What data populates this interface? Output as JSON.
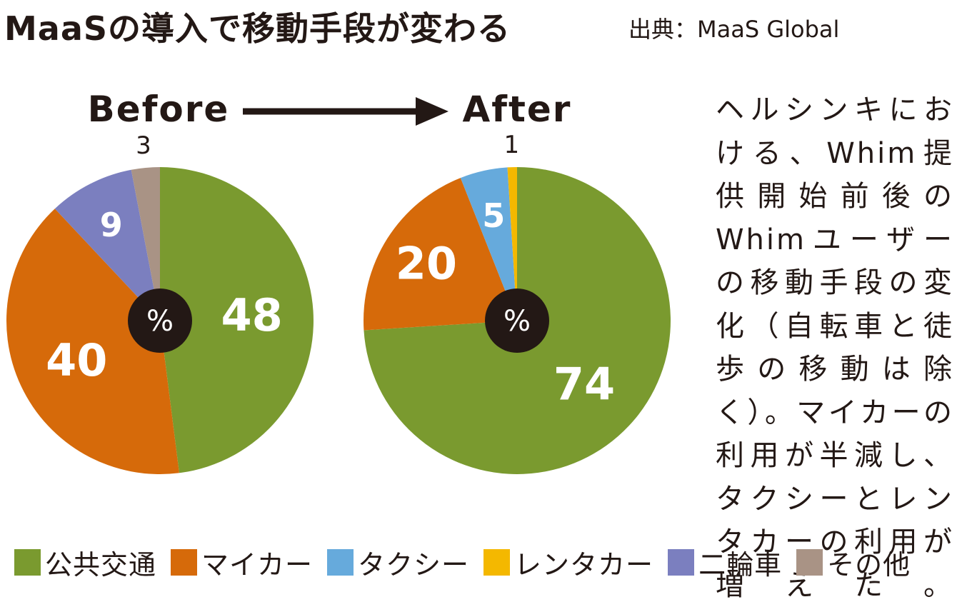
{
  "title": "MaaSの導入で移動手段が変わる",
  "source": "出典：MaaS Global",
  "caption": "ヘルシンキにおける、Whim提供開始前後のWhimユーザーの移動手段の変化（自転車と徒歩の移動は除く）。マイカーの利用が半減し、タクシーとレンタカーの利用が増えた。",
  "chart_data": [
    {
      "type": "pie",
      "title": "Before",
      "unit": "%",
      "slices": [
        {
          "label": "公共交通",
          "value": 48,
          "color": "#7a9a2f"
        },
        {
          "label": "マイカー",
          "value": 40,
          "color": "#d66a0a"
        },
        {
          "label": "二輪車",
          "value": 9,
          "color": "#7b7fbf"
        },
        {
          "label": "その他",
          "value": 3,
          "color": "#a99385"
        }
      ]
    },
    {
      "type": "pie",
      "title": "After",
      "unit": "%",
      "slices": [
        {
          "label": "公共交通",
          "value": 74,
          "color": "#7a9a2f"
        },
        {
          "label": "マイカー",
          "value": 20,
          "color": "#d66a0a"
        },
        {
          "label": "タクシー",
          "value": 5,
          "color": "#66aadc"
        },
        {
          "label": "レンタカー",
          "value": 1,
          "color": "#f4b800"
        }
      ]
    }
  ],
  "legend": [
    {
      "label": "公共交通",
      "color": "#7a9a2f"
    },
    {
      "label": "マイカー",
      "color": "#d66a0a"
    },
    {
      "label": "タクシー",
      "color": "#66aadc"
    },
    {
      "label": "レンタカー",
      "color": "#f4b800"
    },
    {
      "label": "二輪車",
      "color": "#7b7fbf"
    },
    {
      "label": "その他",
      "color": "#a99385"
    }
  ]
}
